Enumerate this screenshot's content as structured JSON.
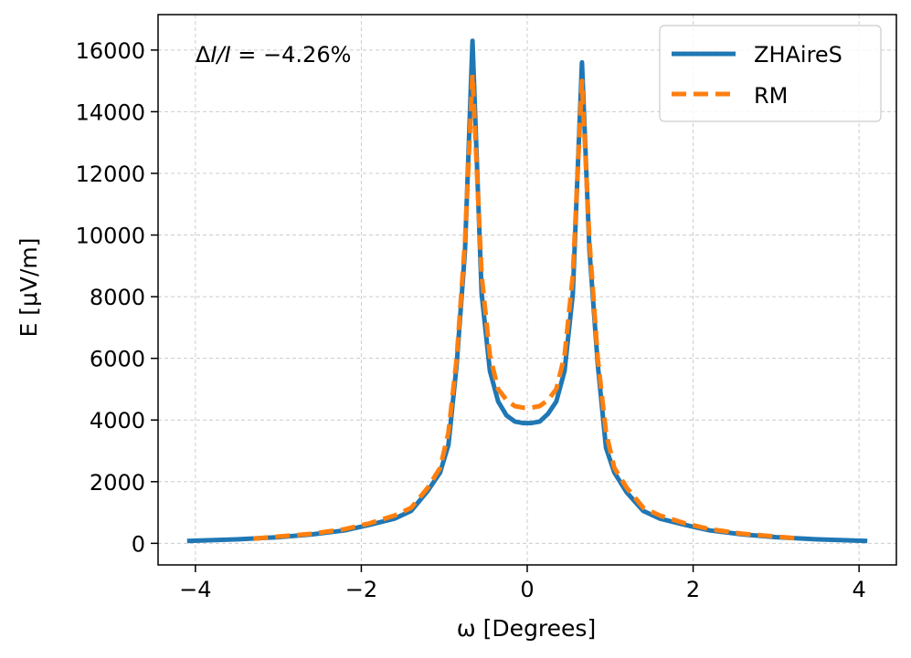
{
  "chart_data": {
    "type": "line",
    "title": "",
    "xlabel": "ω [Degrees]",
    "ylabel": "E [μV/m]",
    "xlim": [
      -4.45,
      4.45
    ],
    "ylim": [
      -700,
      17150
    ],
    "xticks": [
      -4,
      -2,
      0,
      2,
      4
    ],
    "xtick_labels": [
      "−4",
      "−2",
      "0",
      "2",
      "4"
    ],
    "yticks": [
      0,
      2000,
      4000,
      6000,
      8000,
      10000,
      12000,
      14000,
      16000
    ],
    "ytick_labels": [
      "0",
      "2000",
      "4000",
      "6000",
      "8000",
      "10000",
      "12000",
      "14000",
      "16000"
    ],
    "grid": true,
    "legend_position": "top-right",
    "annotation": {
      "prefix": "Δ",
      "italic_text": "I/I",
      "suffix": " = −4.26%"
    },
    "series": [
      {
        "name": "ZHAireS",
        "color": "#1f77b4",
        "style": "solid",
        "x": [
          -4.1,
          -3.5,
          -3.0,
          -2.6,
          -2.2,
          -1.9,
          -1.6,
          -1.4,
          -1.2,
          -1.05,
          -0.95,
          -0.85,
          -0.75,
          -0.66,
          -0.55,
          -0.45,
          -0.35,
          -0.25,
          -0.15,
          -0.05,
          0.05,
          0.15,
          0.25,
          0.35,
          0.45,
          0.55,
          0.66,
          0.75,
          0.85,
          0.95,
          1.05,
          1.2,
          1.4,
          1.6,
          1.9,
          2.2,
          2.6,
          3.0,
          3.5,
          4.1
        ],
        "y": [
          80,
          130,
          200,
          290,
          420,
          600,
          800,
          1050,
          1700,
          2300,
          3200,
          5800,
          9500,
          16300,
          8100,
          5600,
          4600,
          4150,
          3950,
          3900,
          3900,
          3950,
          4200,
          4600,
          5600,
          8100,
          15600,
          9500,
          5800,
          3100,
          2300,
          1650,
          1050,
          800,
          600,
          420,
          290,
          200,
          130,
          80
        ]
      },
      {
        "name": "RM",
        "color": "#ff7f0e",
        "style": "dashed",
        "x": [
          -3.3,
          -3.0,
          -2.6,
          -2.2,
          -1.9,
          -1.6,
          -1.4,
          -1.2,
          -1.05,
          -0.95,
          -0.85,
          -0.75,
          -0.66,
          -0.55,
          -0.45,
          -0.35,
          -0.25,
          -0.15,
          -0.05,
          0.05,
          0.15,
          0.25,
          0.35,
          0.45,
          0.55,
          0.66,
          0.75,
          0.85,
          0.95,
          1.05,
          1.2,
          1.4,
          1.6,
          1.9,
          2.2,
          2.6,
          3.0,
          3.3
        ],
        "y": [
          150,
          220,
          310,
          460,
          650,
          900,
          1150,
          1800,
          2450,
          3600,
          6000,
          9800,
          15200,
          8700,
          6100,
          5000,
          4650,
          4450,
          4400,
          4400,
          4450,
          4650,
          5000,
          6100,
          8700,
          15000,
          9800,
          6000,
          3600,
          2450,
          1800,
          1150,
          900,
          650,
          460,
          310,
          220,
          150
        ]
      }
    ]
  }
}
